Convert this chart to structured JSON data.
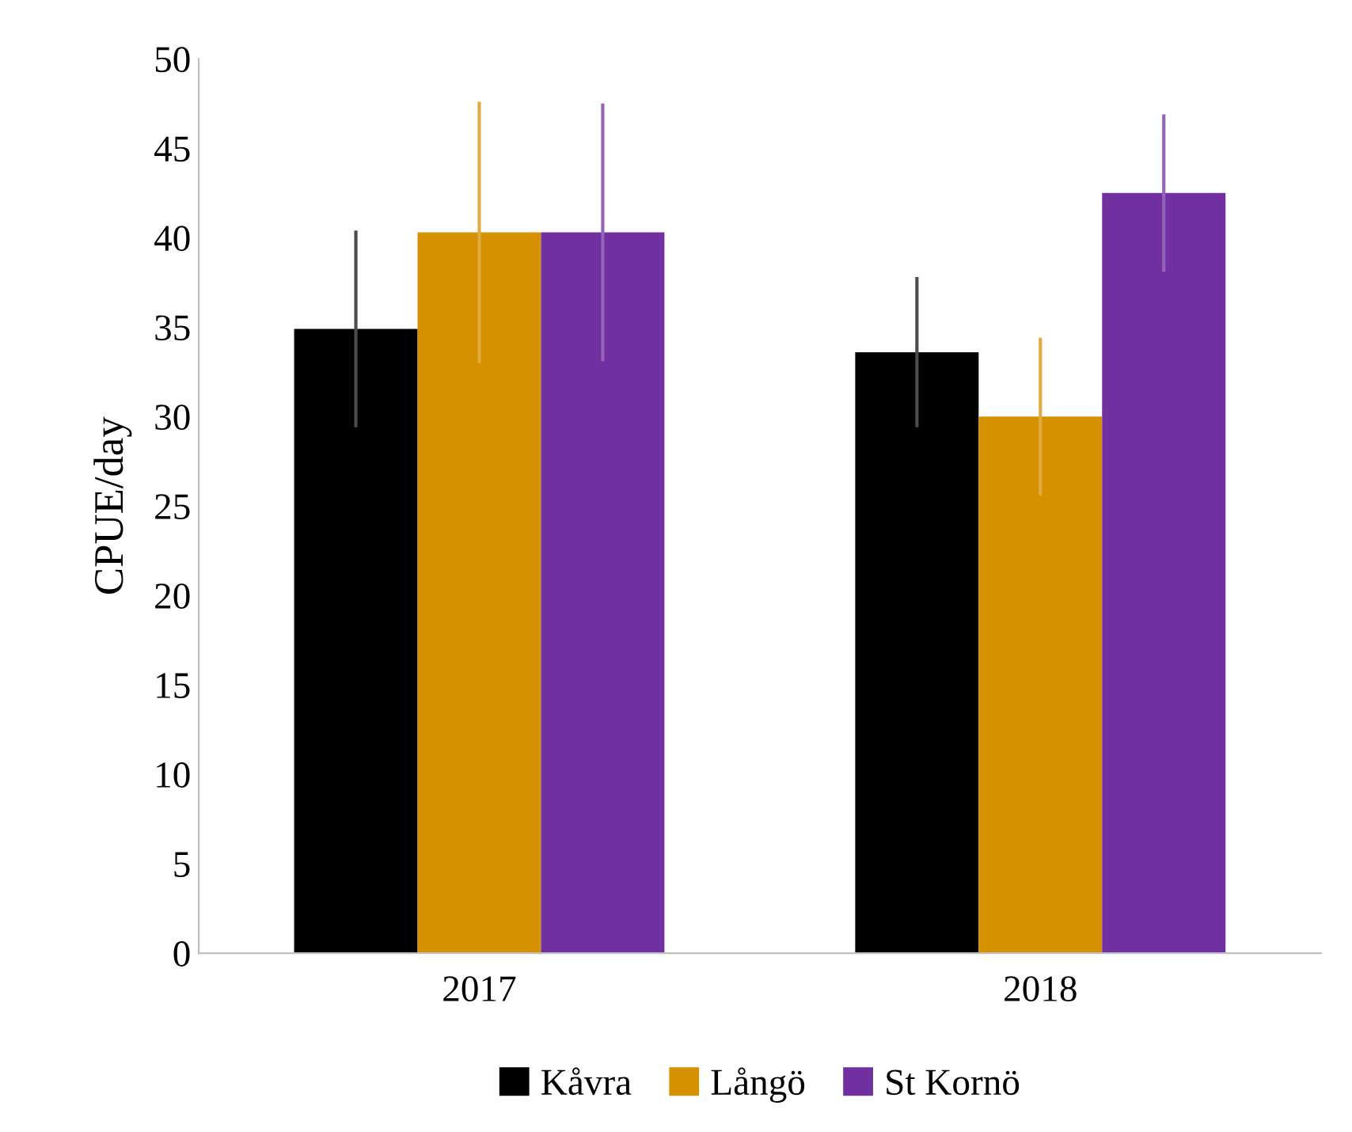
{
  "chart_data": {
    "type": "bar",
    "ylabel": "CPUE/day",
    "categories": [
      "2017",
      "2018"
    ],
    "series": [
      {
        "name": "Kåvra",
        "color": "#000000",
        "values": [
          34.9,
          33.6
        ],
        "errors": [
          5.5,
          4.2
        ]
      },
      {
        "name": "Långö",
        "color": "#d69100",
        "values": [
          40.3,
          30.0
        ],
        "errors": [
          7.3,
          4.4
        ]
      },
      {
        "name": "St Kornö",
        "color": "#7030a0",
        "values": [
          40.3,
          42.5
        ],
        "errors": [
          7.2,
          4.4
        ]
      }
    ],
    "ylim": [
      0,
      50
    ],
    "yticks": [
      0,
      5,
      10,
      15,
      20,
      25,
      30,
      35,
      40,
      45,
      50
    ],
    "grid": false,
    "legend": "bottom"
  }
}
